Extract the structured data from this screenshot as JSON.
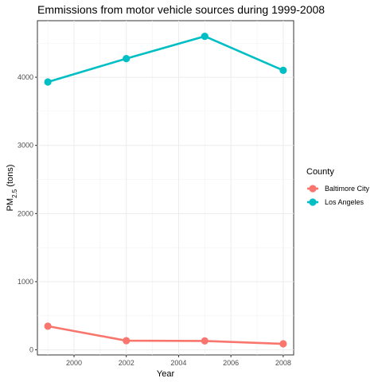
{
  "chart_data": {
    "type": "line",
    "title": "Emmissions from motor vehicle sources during 1999-2008",
    "xlabel": "Year",
    "ylabel_main": "PM",
    "ylabel_sub": "2.5",
    "ylabel_suffix": " (tons)",
    "x": [
      1999,
      2002,
      2005,
      2008
    ],
    "xlim": [
      1998.6,
      2008.4
    ],
    "ylim": [
      -75,
      4830
    ],
    "xticks": [
      2000,
      2002,
      2004,
      2006,
      2008
    ],
    "yticks": [
      0,
      1000,
      2000,
      3000,
      4000
    ],
    "grid": true,
    "legend": {
      "title": "County",
      "placement": "right"
    },
    "series": [
      {
        "name": "Baltimore City",
        "color": "#f8766d",
        "values": [
          346.8,
          134.3,
          130.4,
          88.3
        ]
      },
      {
        "name": "Los Angeles",
        "color": "#00bfc4",
        "values": [
          3931.1,
          4274.0,
          4601.4,
          4101.3
        ]
      }
    ]
  }
}
